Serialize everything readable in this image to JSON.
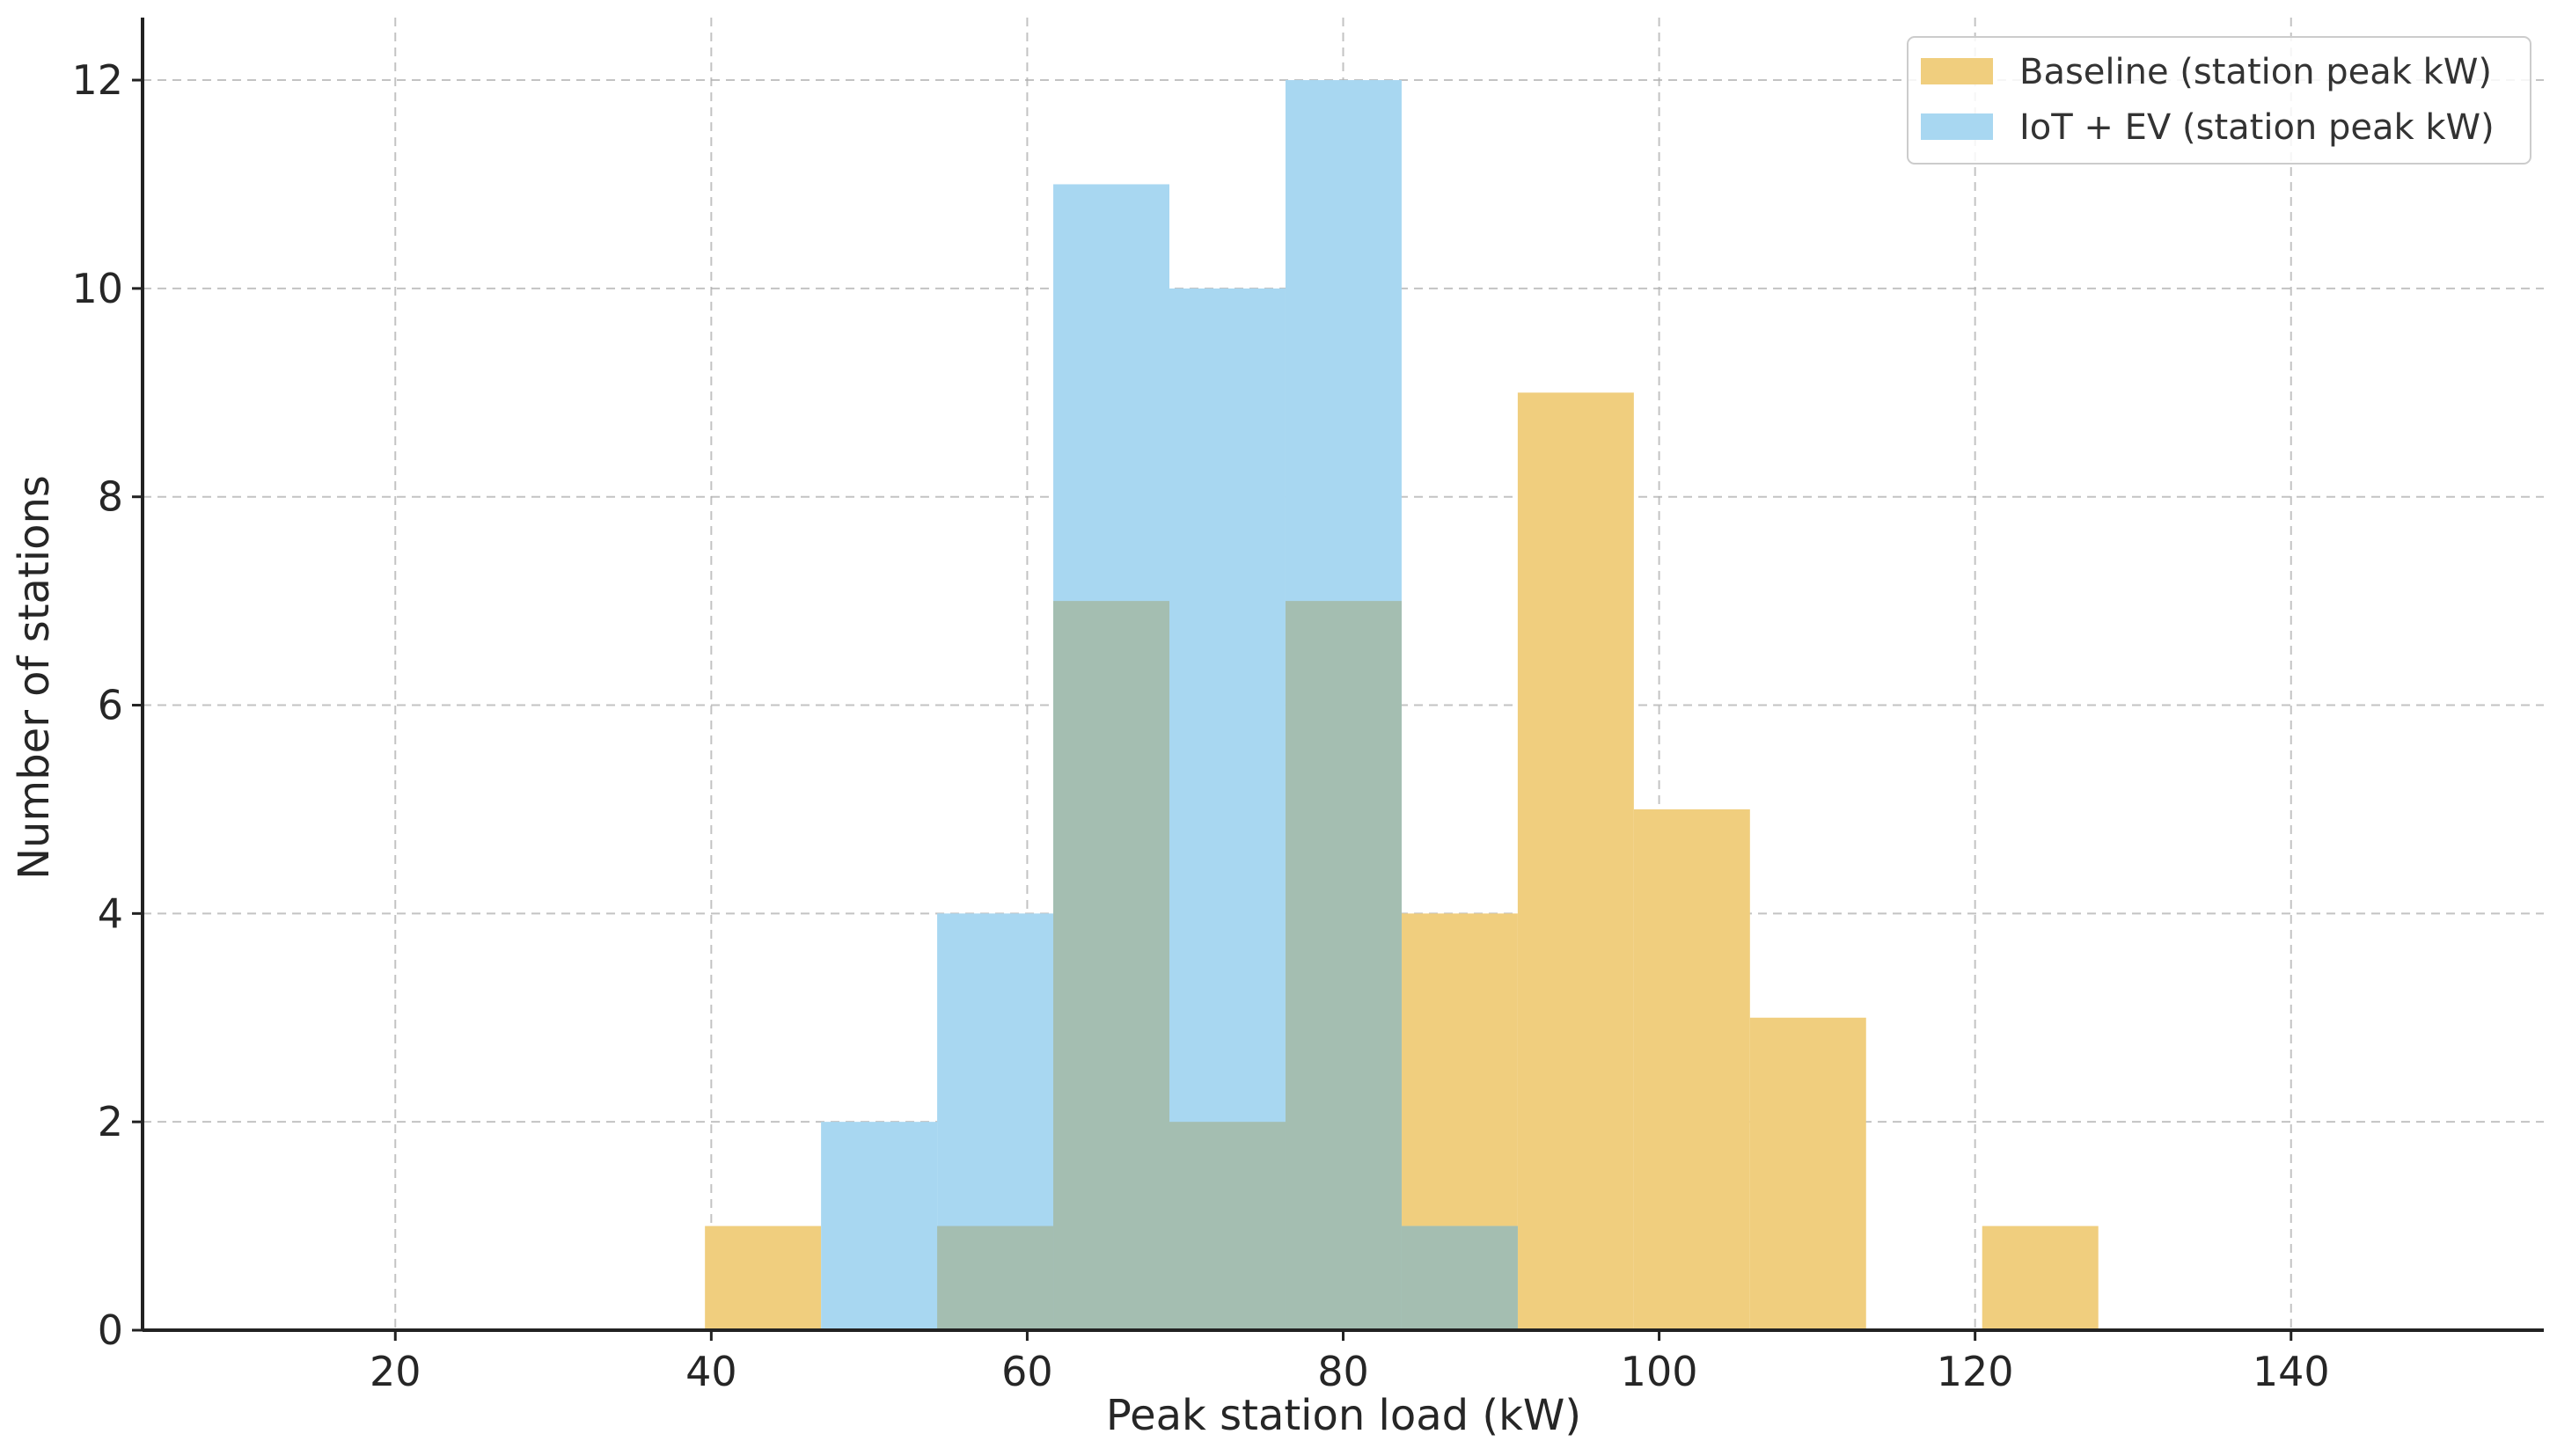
{
  "chart_data": {
    "type": "histogram",
    "xlabel": "Peak station load (kW)",
    "ylabel": "Number of stations",
    "xlim": [
      4,
      156
    ],
    "ylim": [
      0,
      12.6
    ],
    "x_ticks": [
      20,
      40,
      60,
      80,
      100,
      120,
      140
    ],
    "y_ticks": [
      0,
      2,
      4,
      6,
      8,
      10,
      12
    ],
    "grid": true,
    "legend_position": "top-right",
    "bin_width": 7.35,
    "series": [
      {
        "name": "Baseline (station peak kW)",
        "color": "#f0ce7e",
        "bins": [
          {
            "x0": 39.6,
            "x1": 46.95,
            "count": 1
          },
          {
            "x0": 54.3,
            "x1": 61.65,
            "count": 1
          },
          {
            "x0": 61.65,
            "x1": 69.0,
            "count": 7
          },
          {
            "x0": 69.0,
            "x1": 76.35,
            "count": 2
          },
          {
            "x0": 76.35,
            "x1": 83.7,
            "count": 7
          },
          {
            "x0": 83.7,
            "x1": 91.05,
            "count": 4
          },
          {
            "x0": 91.05,
            "x1": 98.4,
            "count": 9
          },
          {
            "x0": 98.4,
            "x1": 105.75,
            "count": 5
          },
          {
            "x0": 105.75,
            "x1": 113.1,
            "count": 3
          },
          {
            "x0": 120.45,
            "x1": 127.8,
            "count": 1
          }
        ]
      },
      {
        "name": "IoT + EV (station peak kW)",
        "color": "#a8d7f1",
        "bins": [
          {
            "x0": 46.95,
            "x1": 54.3,
            "count": 2
          },
          {
            "x0": 54.3,
            "x1": 61.65,
            "count": 4
          },
          {
            "x0": 61.65,
            "x1": 69.0,
            "count": 11
          },
          {
            "x0": 69.0,
            "x1": 76.35,
            "count": 10
          },
          {
            "x0": 76.35,
            "x1": 83.7,
            "count": 12
          },
          {
            "x0": 83.7,
            "x1": 91.05,
            "count": 1
          }
        ]
      }
    ],
    "overlap_color": "#a4beb1"
  }
}
